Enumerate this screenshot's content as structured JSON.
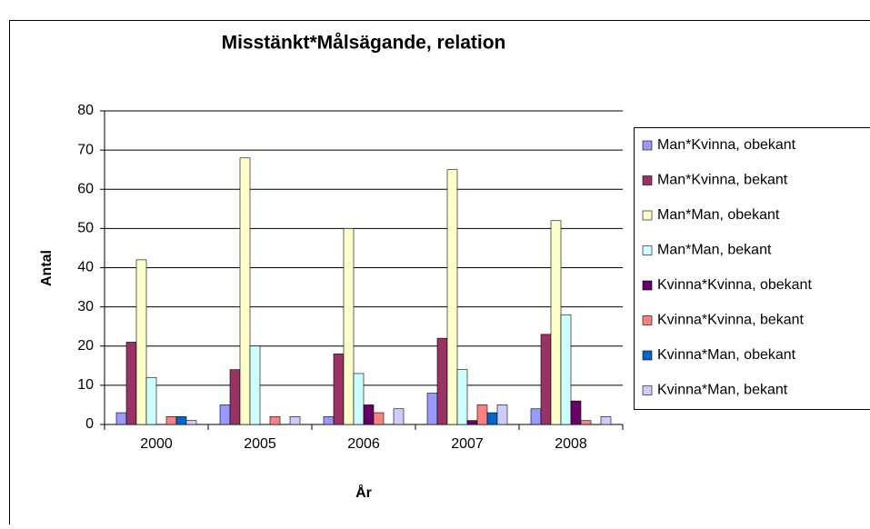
{
  "chart_data": {
    "type": "bar",
    "title": "Misstänkt*Målsägande, relation",
    "x_label": "År",
    "y_label": "Antal",
    "categories": [
      "2000",
      "2005",
      "2006",
      "2007",
      "2008"
    ],
    "series": [
      {
        "name": "Man*Kvinna, obekant",
        "color": "#9999ff",
        "values": [
          3,
          5,
          2,
          8,
          4
        ]
      },
      {
        "name": "Man*Kvinna, bekant",
        "color": "#993366",
        "values": [
          21,
          14,
          18,
          22,
          23
        ]
      },
      {
        "name": "Man*Man, obekant",
        "color": "#ffffcc",
        "values": [
          42,
          68,
          50,
          65,
          52
        ]
      },
      {
        "name": "Man*Man, bekant",
        "color": "#ccffff",
        "values": [
          12,
          20,
          13,
          14,
          28
        ]
      },
      {
        "name": "Kvinna*Kvinna, obekant",
        "color": "#660066",
        "values": [
          0,
          0,
          5,
          1,
          6
        ]
      },
      {
        "name": "Kvinna*Kvinna, bekant",
        "color": "#ff8080",
        "values": [
          2,
          2,
          3,
          5,
          1
        ]
      },
      {
        "name": "Kvinna*Man, obekant",
        "color": "#0066cc",
        "values": [
          2,
          0,
          0,
          3,
          0
        ]
      },
      {
        "name": "Kvinna*Man, bekant",
        "color": "#ccccff",
        "values": [
          1,
          2,
          4,
          5,
          2
        ]
      }
    ],
    "ylim": [
      0,
      80
    ],
    "yticks": [
      0,
      10,
      20,
      30,
      40,
      50,
      60,
      70,
      80
    ],
    "grid": true,
    "legend": "right"
  }
}
